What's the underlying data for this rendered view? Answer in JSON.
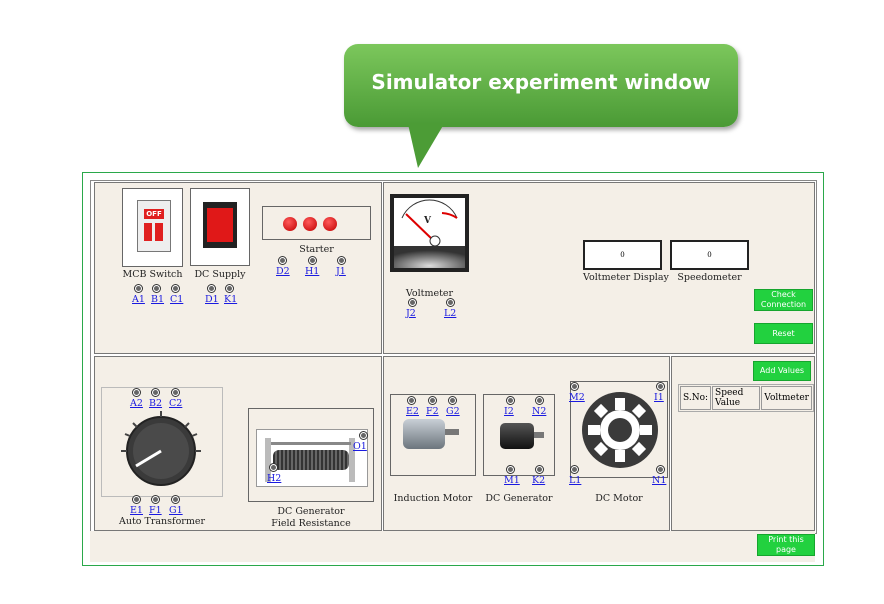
{
  "callout": {
    "title": "Simulator experiment window"
  },
  "mcb": {
    "label": "MCB Switch",
    "state_text": "OFF",
    "terminals": [
      "A1",
      "B1",
      "C1"
    ]
  },
  "dc_supply": {
    "label": "DC Supply",
    "terminals": [
      "D1",
      "K1"
    ]
  },
  "starter": {
    "label": "Starter",
    "terminals": [
      "D2",
      "H1",
      "J1"
    ]
  },
  "voltmeter": {
    "label": "Voltmeter",
    "unit": "V",
    "terminals": [
      "J2",
      "L2"
    ]
  },
  "displays": {
    "voltmeter_display": {
      "label": "Voltmeter Display",
      "value": "0"
    },
    "speedometer": {
      "label": "Speedometer",
      "value": "0"
    }
  },
  "buttons": {
    "check_connection": "Check Connection",
    "reset": "Reset",
    "add_values": "Add Values",
    "print_page": "Print this page"
  },
  "auto_transformer": {
    "label": "Auto Transformer",
    "top_terminals": [
      "A2",
      "B2",
      "C2"
    ],
    "bottom_terminals": [
      "E1",
      "F1",
      "G1"
    ]
  },
  "field_resistance": {
    "label_line1": "DC Generator",
    "label_line2": "Field Resistance",
    "terminals": [
      "O1",
      "H2"
    ]
  },
  "induction_motor": {
    "label": "Induction Motor",
    "terminals": [
      "E2",
      "F2",
      "G2"
    ]
  },
  "dc_generator": {
    "label": "DC Generator",
    "top_terminals": [
      "I2",
      "N2"
    ],
    "bottom_terminals": [
      "M1",
      "K2"
    ]
  },
  "dc_motor": {
    "label": "DC Motor",
    "terminals": [
      "M2",
      "I1",
      "L1",
      "N1"
    ]
  },
  "values_table": {
    "headers": [
      "S.No:",
      "Speed Value",
      "Voltmeter"
    ]
  },
  "colors": {
    "accent_green": "#22d13f",
    "panel_bg": "#f4efe7",
    "callout_green": "#5aac42",
    "link_blue": "#1a1ae0"
  }
}
